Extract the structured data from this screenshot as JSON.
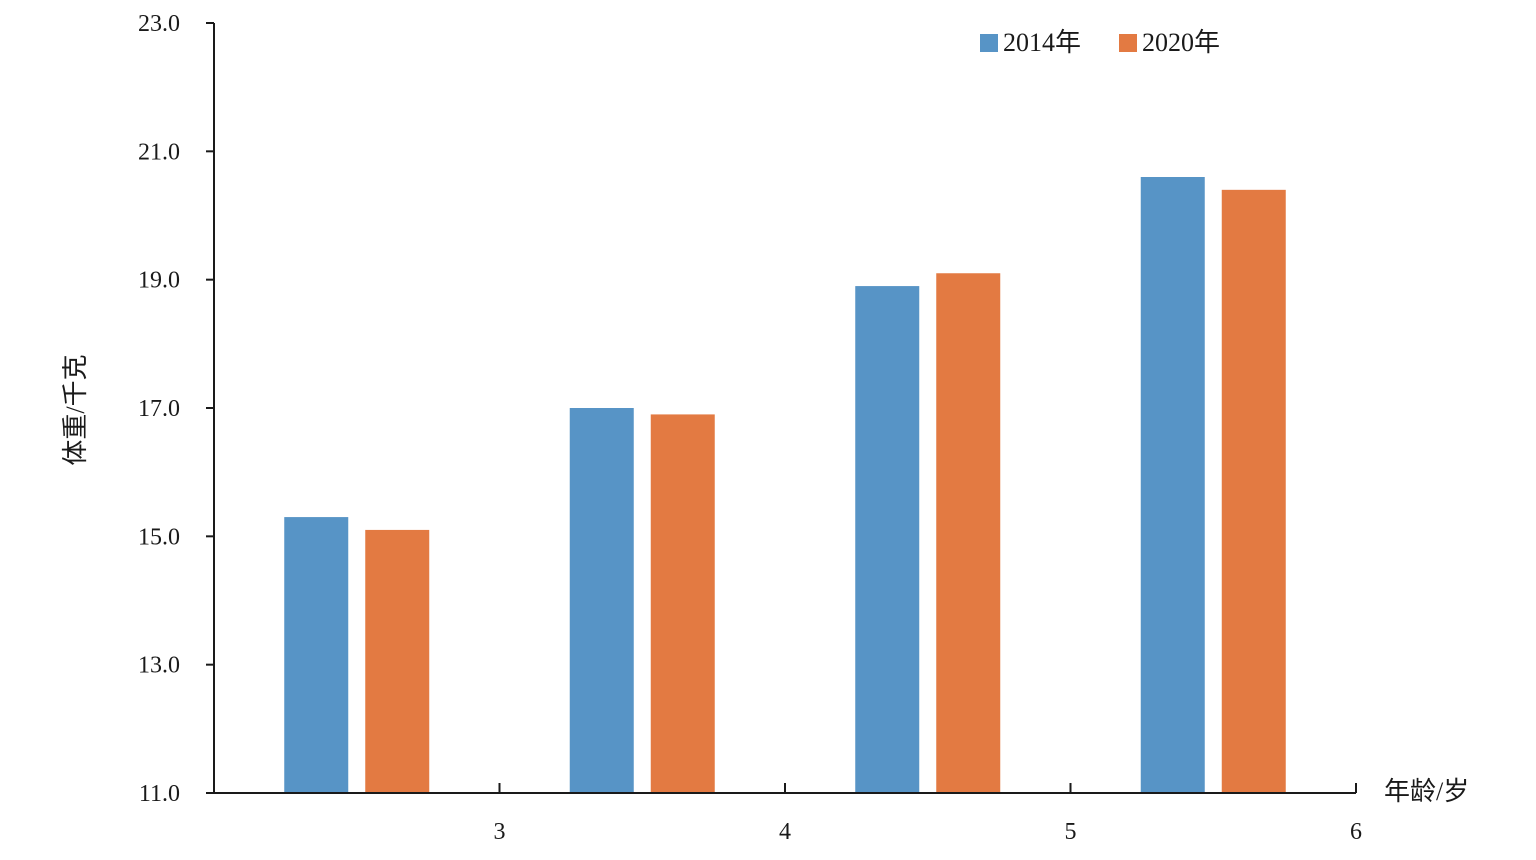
{
  "chart_data": {
    "type": "bar",
    "categories": [
      "3",
      "4",
      "5",
      "6"
    ],
    "x_ticks": [
      "3",
      "4",
      "5",
      "6"
    ],
    "series": [
      {
        "name": "2014年",
        "color": "#5794c6",
        "values": [
          15.3,
          17.0,
          18.9,
          20.6
        ]
      },
      {
        "name": "2020年",
        "color": "#e37a42",
        "values": [
          15.1,
          16.9,
          19.1,
          20.4
        ]
      }
    ],
    "ylabel": "体重/千克",
    "xlabel": "年龄/岁",
    "ylim": [
      11.0,
      23.0
    ],
    "y_ticks": [
      "11.0",
      "13.0",
      "15.0",
      "17.0",
      "19.0",
      "21.0",
      "23.0"
    ],
    "grid": false,
    "legend_position": "top-right"
  }
}
